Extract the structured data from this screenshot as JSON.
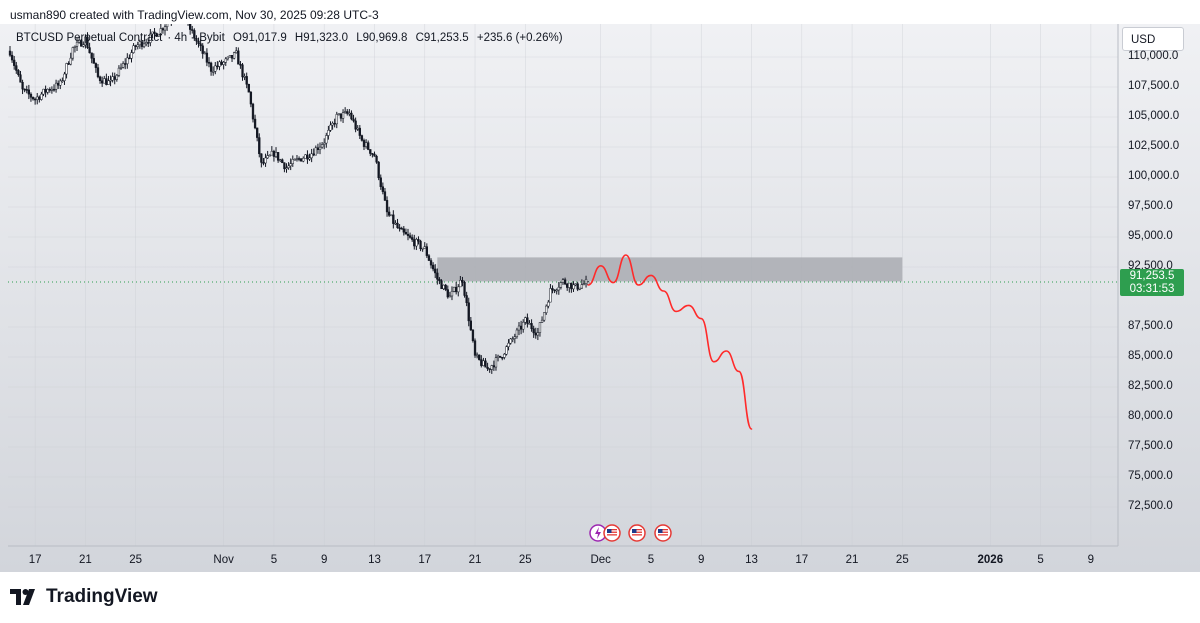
{
  "caption": "usman890 created with TradingView.com, Nov 30, 2025 09:28 UTC-3",
  "legend": {
    "symbol": "BTCUSD Perpetual Contract",
    "interval": "· 4h ·",
    "exchange": "Bybit",
    "open": "O91,017.9",
    "high": "H91,323.0",
    "low": "L90,969.8",
    "close": "C91,253.5",
    "change": "+235.6 (+0.26%)"
  },
  "currency_button": "USD",
  "price_axis": [
    "110,000.0",
    "107,500.0",
    "105,000.0",
    "102,500.0",
    "100,000.0",
    "97,500.0",
    "95,000.0",
    "92,500.0",
    "87,500.0",
    "85,000.0",
    "82,500.0",
    "80,000.0",
    "77,500.0",
    "75,000.0",
    "72,500.0"
  ],
  "current_price": {
    "price": "91,253.5",
    "countdown": "03:31:53"
  },
  "time_axis": [
    "17",
    "21",
    "25",
    "Nov",
    "5",
    "9",
    "13",
    "17",
    "21",
    "25",
    "Dec",
    "5",
    "9",
    "13",
    "17",
    "21",
    "25",
    "2026",
    "5",
    "9"
  ],
  "brand": "TradingView",
  "colors": {
    "bull": "#ffffff",
    "bear": "#131722",
    "projection": "#ff2a2a",
    "zone": "#a9abb1",
    "price_tag": "#2e9e4f"
  },
  "events": [
    {
      "icon": "lightning-event-icon"
    },
    {
      "icon": "us-flag-event-icon"
    },
    {
      "icon": "us-flag-event-icon"
    },
    {
      "icon": "us-flag-event-icon"
    }
  ],
  "chart_data": {
    "type": "candlestick",
    "symbol": "BTCUSD Perpetual Contract",
    "exchange": "Bybit",
    "interval": "4h",
    "y_range": [
      70500,
      114000
    ],
    "x_range_dates": [
      "2025-10-15",
      "2026-01-11"
    ],
    "candle_range_dates": [
      "2025-10-15",
      "2025-11-30"
    ],
    "path_points": [
      [
        "2025-10-15",
        110500
      ],
      [
        "2025-10-16",
        107200
      ],
      [
        "2025-10-17",
        106500
      ],
      [
        "2025-10-18",
        107300
      ],
      [
        "2025-10-19",
        107700
      ],
      [
        "2025-10-20",
        110700
      ],
      [
        "2025-10-21",
        111500
      ],
      [
        "2025-10-22",
        108300
      ],
      [
        "2025-10-23",
        107800
      ],
      [
        "2025-10-24",
        109300
      ],
      [
        "2025-10-25",
        110900
      ],
      [
        "2025-10-26",
        111500
      ],
      [
        "2025-10-27",
        112300
      ],
      [
        "2025-10-28",
        113500
      ],
      [
        "2025-10-29",
        113000
      ],
      [
        "2025-10-30",
        111000
      ],
      [
        "2025-10-31",
        109000
      ],
      [
        "2025-11-01",
        109500
      ],
      [
        "2025-11-02",
        110200
      ],
      [
        "2025-11-03",
        107000
      ],
      [
        "2025-11-04",
        101000
      ],
      [
        "2025-11-05",
        102000
      ],
      [
        "2025-11-06",
        100800
      ],
      [
        "2025-11-07",
        101500
      ],
      [
        "2025-11-08",
        102000
      ],
      [
        "2025-11-09",
        103000
      ],
      [
        "2025-11-10",
        105000
      ],
      [
        "2025-11-11",
        105300
      ],
      [
        "2025-11-12",
        103000
      ],
      [
        "2025-11-13",
        101800
      ],
      [
        "2025-11-14",
        97000
      ],
      [
        "2025-11-15",
        95500
      ],
      [
        "2025-11-16",
        94700
      ],
      [
        "2025-11-17",
        94000
      ],
      [
        "2025-11-18",
        91500
      ],
      [
        "2025-11-19",
        90000
      ],
      [
        "2025-11-20",
        91500
      ],
      [
        "2025-11-21",
        85000
      ],
      [
        "2025-11-22",
        84000
      ],
      [
        "2025-11-23",
        85000
      ],
      [
        "2025-11-24",
        86500
      ],
      [
        "2025-11-25",
        88000
      ],
      [
        "2025-11-26",
        87000
      ],
      [
        "2025-11-27",
        90500
      ],
      [
        "2025-11-28",
        91300
      ],
      [
        "2025-11-29",
        90800
      ],
      [
        "2025-11-30",
        91250
      ]
    ],
    "last": {
      "open": 91017.9,
      "high": 91323.0,
      "low": 90969.8,
      "close": 91253.5,
      "change": 235.6,
      "change_pct": 0.26
    },
    "resistance_zone": {
      "from": "2025-11-18",
      "to": "2025-12-25",
      "low": 91300,
      "high": 93300
    },
    "projection": [
      [
        "2025-11-30",
        91000
      ],
      [
        "2025-12-01",
        92600
      ],
      [
        "2025-12-02",
        91200
      ],
      [
        "2025-12-03",
        93500
      ],
      [
        "2025-12-04",
        91000
      ],
      [
        "2025-12-05",
        91800
      ],
      [
        "2025-12-06",
        90500
      ],
      [
        "2025-12-07",
        88800
      ],
      [
        "2025-12-08",
        89300
      ],
      [
        "2025-12-09",
        88200
      ],
      [
        "2025-12-10",
        84600
      ],
      [
        "2025-12-11",
        85500
      ],
      [
        "2025-12-12",
        83800
      ],
      [
        "2025-12-13",
        79000
      ]
    ]
  }
}
